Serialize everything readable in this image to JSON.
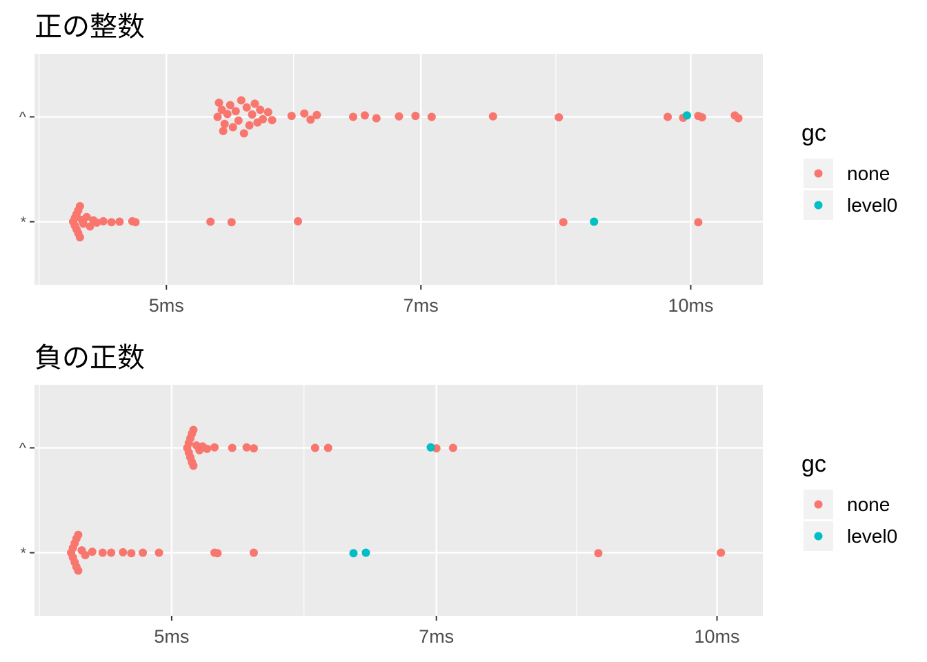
{
  "chart_data": [
    {
      "type": "scatter",
      "title": "正の整数",
      "x_scale": "log",
      "x_unit": "ms",
      "xlim": [
        4.2,
        11.0
      ],
      "x_ticks": [
        {
          "value": 5,
          "label": "5ms"
        },
        {
          "value": 7,
          "label": "7ms"
        },
        {
          "value": 10,
          "label": "10ms"
        }
      ],
      "categories": [
        "*",
        "^"
      ],
      "series": [
        {
          "name": "none",
          "color": "#F8766D",
          "points": [
            {
              "cat": "^",
              "x": 5.35,
              "dy": 0.0
            },
            {
              "cat": "^",
              "x": 5.38,
              "dy": 0.15
            },
            {
              "cat": "^",
              "x": 5.4,
              "dy": -0.15
            },
            {
              "cat": "^",
              "x": 5.36,
              "dy": 0.3
            },
            {
              "cat": "^",
              "x": 5.39,
              "dy": -0.3
            },
            {
              "cat": "^",
              "x": 5.42,
              "dy": 0.06
            },
            {
              "cat": "^",
              "x": 5.44,
              "dy": 0.25
            },
            {
              "cat": "^",
              "x": 5.46,
              "dy": -0.22
            },
            {
              "cat": "^",
              "x": 5.48,
              "dy": 0.12
            },
            {
              "cat": "^",
              "x": 5.5,
              "dy": -0.08
            },
            {
              "cat": "^",
              "x": 5.52,
              "dy": 0.35
            },
            {
              "cat": "^",
              "x": 5.54,
              "dy": -0.35
            },
            {
              "cat": "^",
              "x": 5.56,
              "dy": 0.2
            },
            {
              "cat": "^",
              "x": 5.58,
              "dy": -0.18
            },
            {
              "cat": "^",
              "x": 5.6,
              "dy": 0.05
            },
            {
              "cat": "^",
              "x": 5.62,
              "dy": 0.28
            },
            {
              "cat": "^",
              "x": 5.64,
              "dy": -0.12
            },
            {
              "cat": "^",
              "x": 5.66,
              "dy": 0.15
            },
            {
              "cat": "^",
              "x": 5.68,
              "dy": -0.05
            },
            {
              "cat": "^",
              "x": 5.72,
              "dy": 0.1
            },
            {
              "cat": "^",
              "x": 5.75,
              "dy": -0.07
            },
            {
              "cat": "^",
              "x": 5.9,
              "dy": 0.02
            },
            {
              "cat": "^",
              "x": 6.0,
              "dy": 0.07
            },
            {
              "cat": "^",
              "x": 6.05,
              "dy": -0.06
            },
            {
              "cat": "^",
              "x": 6.1,
              "dy": 0.04
            },
            {
              "cat": "^",
              "x": 6.4,
              "dy": 0.0
            },
            {
              "cat": "^",
              "x": 6.5,
              "dy": 0.03
            },
            {
              "cat": "^",
              "x": 6.6,
              "dy": -0.03
            },
            {
              "cat": "^",
              "x": 6.8,
              "dy": 0.01
            },
            {
              "cat": "^",
              "x": 6.95,
              "dy": 0.02
            },
            {
              "cat": "^",
              "x": 7.1,
              "dy": 0.0
            },
            {
              "cat": "^",
              "x": 7.7,
              "dy": 0.01
            },
            {
              "cat": "^",
              "x": 8.4,
              "dy": -0.01
            },
            {
              "cat": "^",
              "x": 9.7,
              "dy": 0.0
            },
            {
              "cat": "^",
              "x": 9.9,
              "dy": -0.02
            },
            {
              "cat": "^",
              "x": 10.1,
              "dy": 0.02
            },
            {
              "cat": "^",
              "x": 10.15,
              "dy": -0.01
            },
            {
              "cat": "^",
              "x": 10.6,
              "dy": 0.03
            },
            {
              "cat": "^",
              "x": 10.65,
              "dy": -0.03
            },
            {
              "cat": "*",
              "x": 4.42,
              "dy": 0.0
            },
            {
              "cat": "*",
              "x": 4.43,
              "dy": 0.08
            },
            {
              "cat": "*",
              "x": 4.43,
              "dy": -0.08
            },
            {
              "cat": "*",
              "x": 4.44,
              "dy": 0.16
            },
            {
              "cat": "*",
              "x": 4.44,
              "dy": -0.16
            },
            {
              "cat": "*",
              "x": 4.45,
              "dy": 0.24
            },
            {
              "cat": "*",
              "x": 4.45,
              "dy": -0.24
            },
            {
              "cat": "*",
              "x": 4.46,
              "dy": 0.33
            },
            {
              "cat": "*",
              "x": 4.46,
              "dy": -0.33
            },
            {
              "cat": "*",
              "x": 4.47,
              "dy": 0.04
            },
            {
              "cat": "*",
              "x": 4.48,
              "dy": -0.04
            },
            {
              "cat": "*",
              "x": 4.5,
              "dy": 0.1
            },
            {
              "cat": "*",
              "x": 4.52,
              "dy": -0.1
            },
            {
              "cat": "*",
              "x": 4.54,
              "dy": 0.03
            },
            {
              "cat": "*",
              "x": 4.56,
              "dy": -0.02
            },
            {
              "cat": "*",
              "x": 4.6,
              "dy": 0.01
            },
            {
              "cat": "*",
              "x": 4.65,
              "dy": -0.01
            },
            {
              "cat": "*",
              "x": 4.7,
              "dy": 0.0
            },
            {
              "cat": "*",
              "x": 4.78,
              "dy": 0.01
            },
            {
              "cat": "*",
              "x": 4.8,
              "dy": -0.01
            },
            {
              "cat": "*",
              "x": 5.3,
              "dy": 0.0
            },
            {
              "cat": "*",
              "x": 5.45,
              "dy": -0.01
            },
            {
              "cat": "*",
              "x": 5.95,
              "dy": 0.01
            },
            {
              "cat": "*",
              "x": 8.45,
              "dy": -0.01
            },
            {
              "cat": "*",
              "x": 10.1,
              "dy": -0.01
            }
          ]
        },
        {
          "name": "level0",
          "color": "#00BFC4",
          "points": [
            {
              "cat": "^",
              "x": 9.95,
              "dy": 0.03
            },
            {
              "cat": "*",
              "x": 8.8,
              "dy": 0.0
            }
          ]
        }
      ]
    },
    {
      "type": "scatter",
      "title": "負の正数",
      "x_scale": "log",
      "x_unit": "ms",
      "xlim": [
        4.2,
        10.6
      ],
      "x_ticks": [
        {
          "value": 5,
          "label": "5ms"
        },
        {
          "value": 7,
          "label": "7ms"
        },
        {
          "value": 10,
          "label": "10ms"
        }
      ],
      "categories": [
        "*",
        "^"
      ],
      "series": [
        {
          "name": "none",
          "color": "#F8766D",
          "points": [
            {
              "cat": "^",
              "x": 5.1,
              "dy": 0.0
            },
            {
              "cat": "^",
              "x": 5.11,
              "dy": 0.1
            },
            {
              "cat": "^",
              "x": 5.11,
              "dy": -0.1
            },
            {
              "cat": "^",
              "x": 5.12,
              "dy": 0.2
            },
            {
              "cat": "^",
              "x": 5.12,
              "dy": -0.2
            },
            {
              "cat": "^",
              "x": 5.13,
              "dy": 0.3
            },
            {
              "cat": "^",
              "x": 5.13,
              "dy": -0.3
            },
            {
              "cat": "^",
              "x": 5.14,
              "dy": 0.38
            },
            {
              "cat": "^",
              "x": 5.14,
              "dy": -0.38
            },
            {
              "cat": "^",
              "x": 5.16,
              "dy": 0.05
            },
            {
              "cat": "^",
              "x": 5.18,
              "dy": -0.05
            },
            {
              "cat": "^",
              "x": 5.2,
              "dy": 0.03
            },
            {
              "cat": "^",
              "x": 5.23,
              "dy": -0.02
            },
            {
              "cat": "^",
              "x": 5.28,
              "dy": 0.01
            },
            {
              "cat": "^",
              "x": 5.4,
              "dy": 0.0
            },
            {
              "cat": "^",
              "x": 5.5,
              "dy": 0.01
            },
            {
              "cat": "^",
              "x": 5.55,
              "dy": -0.01
            },
            {
              "cat": "^",
              "x": 6.0,
              "dy": 0.0
            },
            {
              "cat": "^",
              "x": 6.1,
              "dy": 0.0
            },
            {
              "cat": "^",
              "x": 7.0,
              "dy": -0.01
            },
            {
              "cat": "^",
              "x": 7.15,
              "dy": 0.0
            },
            {
              "cat": "*",
              "x": 4.4,
              "dy": 0.0
            },
            {
              "cat": "*",
              "x": 4.41,
              "dy": 0.1
            },
            {
              "cat": "*",
              "x": 4.41,
              "dy": -0.1
            },
            {
              "cat": "*",
              "x": 4.42,
              "dy": 0.2
            },
            {
              "cat": "*",
              "x": 4.42,
              "dy": -0.2
            },
            {
              "cat": "*",
              "x": 4.43,
              "dy": 0.3
            },
            {
              "cat": "*",
              "x": 4.43,
              "dy": -0.3
            },
            {
              "cat": "*",
              "x": 4.44,
              "dy": 0.38
            },
            {
              "cat": "*",
              "x": 4.44,
              "dy": -0.38
            },
            {
              "cat": "*",
              "x": 4.46,
              "dy": 0.05
            },
            {
              "cat": "*",
              "x": 4.48,
              "dy": -0.05
            },
            {
              "cat": "*",
              "x": 4.52,
              "dy": 0.02
            },
            {
              "cat": "*",
              "x": 4.58,
              "dy": 0.0
            },
            {
              "cat": "*",
              "x": 4.63,
              "dy": 0.0
            },
            {
              "cat": "*",
              "x": 4.7,
              "dy": 0.01
            },
            {
              "cat": "*",
              "x": 4.75,
              "dy": -0.01
            },
            {
              "cat": "*",
              "x": 4.82,
              "dy": 0.0
            },
            {
              "cat": "*",
              "x": 4.92,
              "dy": 0.0
            },
            {
              "cat": "*",
              "x": 5.28,
              "dy": 0.0
            },
            {
              "cat": "*",
              "x": 5.3,
              "dy": -0.01
            },
            {
              "cat": "*",
              "x": 5.55,
              "dy": 0.0
            },
            {
              "cat": "*",
              "x": 8.6,
              "dy": -0.01
            },
            {
              "cat": "*",
              "x": 10.05,
              "dy": 0.0
            }
          ]
        },
        {
          "name": "level0",
          "color": "#00BFC4",
          "points": [
            {
              "cat": "^",
              "x": 6.95,
              "dy": 0.01
            },
            {
              "cat": "*",
              "x": 6.3,
              "dy": -0.01
            },
            {
              "cat": "*",
              "x": 6.4,
              "dy": 0.0
            }
          ]
        }
      ]
    }
  ],
  "legend": {
    "title": "gc",
    "items": [
      {
        "label": "none",
        "color": "#F8766D"
      },
      {
        "label": "level0",
        "color": "#00BFC4"
      }
    ]
  }
}
